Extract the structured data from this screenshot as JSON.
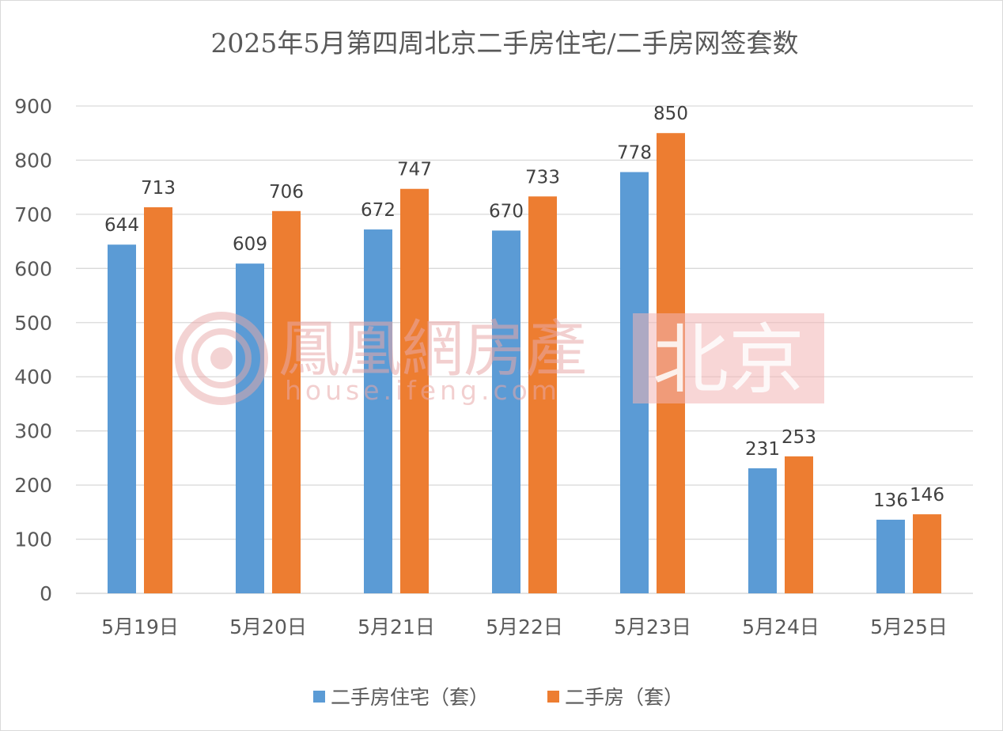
{
  "chart_data": {
    "type": "bar",
    "title": "2025年5月第四周北京二手房住宅/二手房网签套数",
    "categories": [
      "5月19日",
      "5月20日",
      "5月21日",
      "5月22日",
      "5月23日",
      "5月24日",
      "5月25日"
    ],
    "series": [
      {
        "name": "二手房住宅（套）",
        "color": "#5B9BD5",
        "values": [
          644,
          609,
          672,
          670,
          778,
          231,
          136
        ]
      },
      {
        "name": "二手房（套）",
        "color": "#ED7D31",
        "values": [
          713,
          706,
          747,
          733,
          850,
          253,
          146
        ]
      }
    ],
    "ylim": [
      0,
      900
    ],
    "yticks": [
      "0",
      "100",
      "200",
      "300",
      "400",
      "500",
      "600",
      "700",
      "800",
      "900"
    ],
    "grid": true,
    "legend_position": "bottom",
    "data_labels": true
  },
  "watermark": {
    "brand": "鳳凰網房產",
    "url": "house.ifeng.com",
    "region": "北京"
  }
}
